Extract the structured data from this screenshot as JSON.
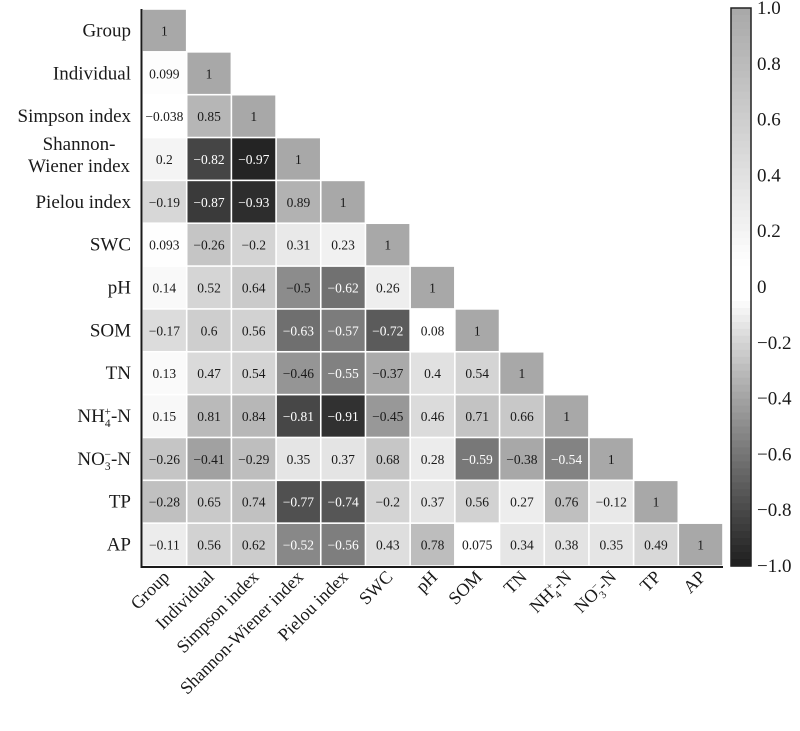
{
  "chart_data": {
    "type": "heatmap",
    "subtype": "lower-triangle correlation matrix",
    "title": "",
    "variables": [
      {
        "label": "Group"
      },
      {
        "label": "Individual"
      },
      {
        "label": "Simpson index"
      },
      {
        "label": "Shannon-Wiener index",
        "row_lines": [
          "Shannon-",
          "Wiener index"
        ]
      },
      {
        "label": "Pielou index"
      },
      {
        "label": "SWC"
      },
      {
        "label": "pH"
      },
      {
        "label": "SOM"
      },
      {
        "label": "TN"
      },
      {
        "label": "NH4+-N",
        "base": "NH",
        "sub": "4",
        "sup": "+",
        "suffix": "-N"
      },
      {
        "label": "NO3−-N",
        "base": "NO",
        "sub": "3",
        "sup": "−",
        "suffix": "-N"
      },
      {
        "label": "TP"
      },
      {
        "label": "AP"
      }
    ],
    "values": [
      [
        "1"
      ],
      [
        "0.099",
        "1"
      ],
      [
        "−0.038",
        "0.85",
        "1"
      ],
      [
        "0.2",
        "−0.82",
        "−0.97",
        "1"
      ],
      [
        "−0.19",
        "−0.87",
        "−0.93",
        "0.89",
        "1"
      ],
      [
        "0.093",
        "−0.26",
        "−0.2",
        "0.31",
        "0.23",
        "1"
      ],
      [
        "0.14",
        "0.52",
        "0.64",
        "−0.5",
        "−0.62",
        "0.26",
        "1"
      ],
      [
        "−0.17",
        "0.6",
        "0.56",
        "−0.63",
        "−0.57",
        "−0.72",
        "0.08",
        "1"
      ],
      [
        "0.13",
        "0.47",
        "0.54",
        "−0.46",
        "−0.55",
        "−0.37",
        "0.4",
        "0.54",
        "1"
      ],
      [
        "0.15",
        "0.81",
        "0.84",
        "−0.81",
        "−0.91",
        "−0.45",
        "0.46",
        "0.71",
        "0.66",
        "1"
      ],
      [
        "−0.26",
        "−0.41",
        "−0.29",
        "0.35",
        "0.37",
        "0.68",
        "0.28",
        "−0.59",
        "−0.38",
        "−0.54",
        "1"
      ],
      [
        "−0.28",
        "0.65",
        "0.74",
        "−0.77",
        "−0.74",
        "−0.2",
        "0.37",
        "0.56",
        "0.27",
        "0.76",
        "−0.12",
        "1"
      ],
      [
        "−0.11",
        "0.56",
        "0.62",
        "−0.52",
        "−0.56",
        "0.43",
        "0.78",
        "0.075",
        "0.34",
        "0.38",
        "0.35",
        "0.49",
        "1"
      ]
    ],
    "colorbar": {
      "range": [
        -1.0,
        1.0
      ],
      "ticks": [
        "1.0",
        "0.8",
        "0.6",
        "0.4",
        "0.2",
        "0",
        "−0.2",
        "−0.4",
        "−0.6",
        "−0.8",
        "−1.0"
      ],
      "tick_values": [
        1.0,
        0.8,
        0.6,
        0.4,
        0.2,
        0,
        -0.2,
        -0.4,
        -0.6,
        -0.8,
        -1.0
      ],
      "placement": "right"
    },
    "colors": {
      "positive_end": "#a8a8a8",
      "zero": "#ffffff",
      "negative_end": "#1e1e1e",
      "text_dark": "#1a1a1a",
      "text_light": "#ffffff",
      "grid_gap": "#ffffff",
      "axis": "#1a1a1a"
    },
    "xlabel": "",
    "ylabel": "",
    "grid": false
  }
}
